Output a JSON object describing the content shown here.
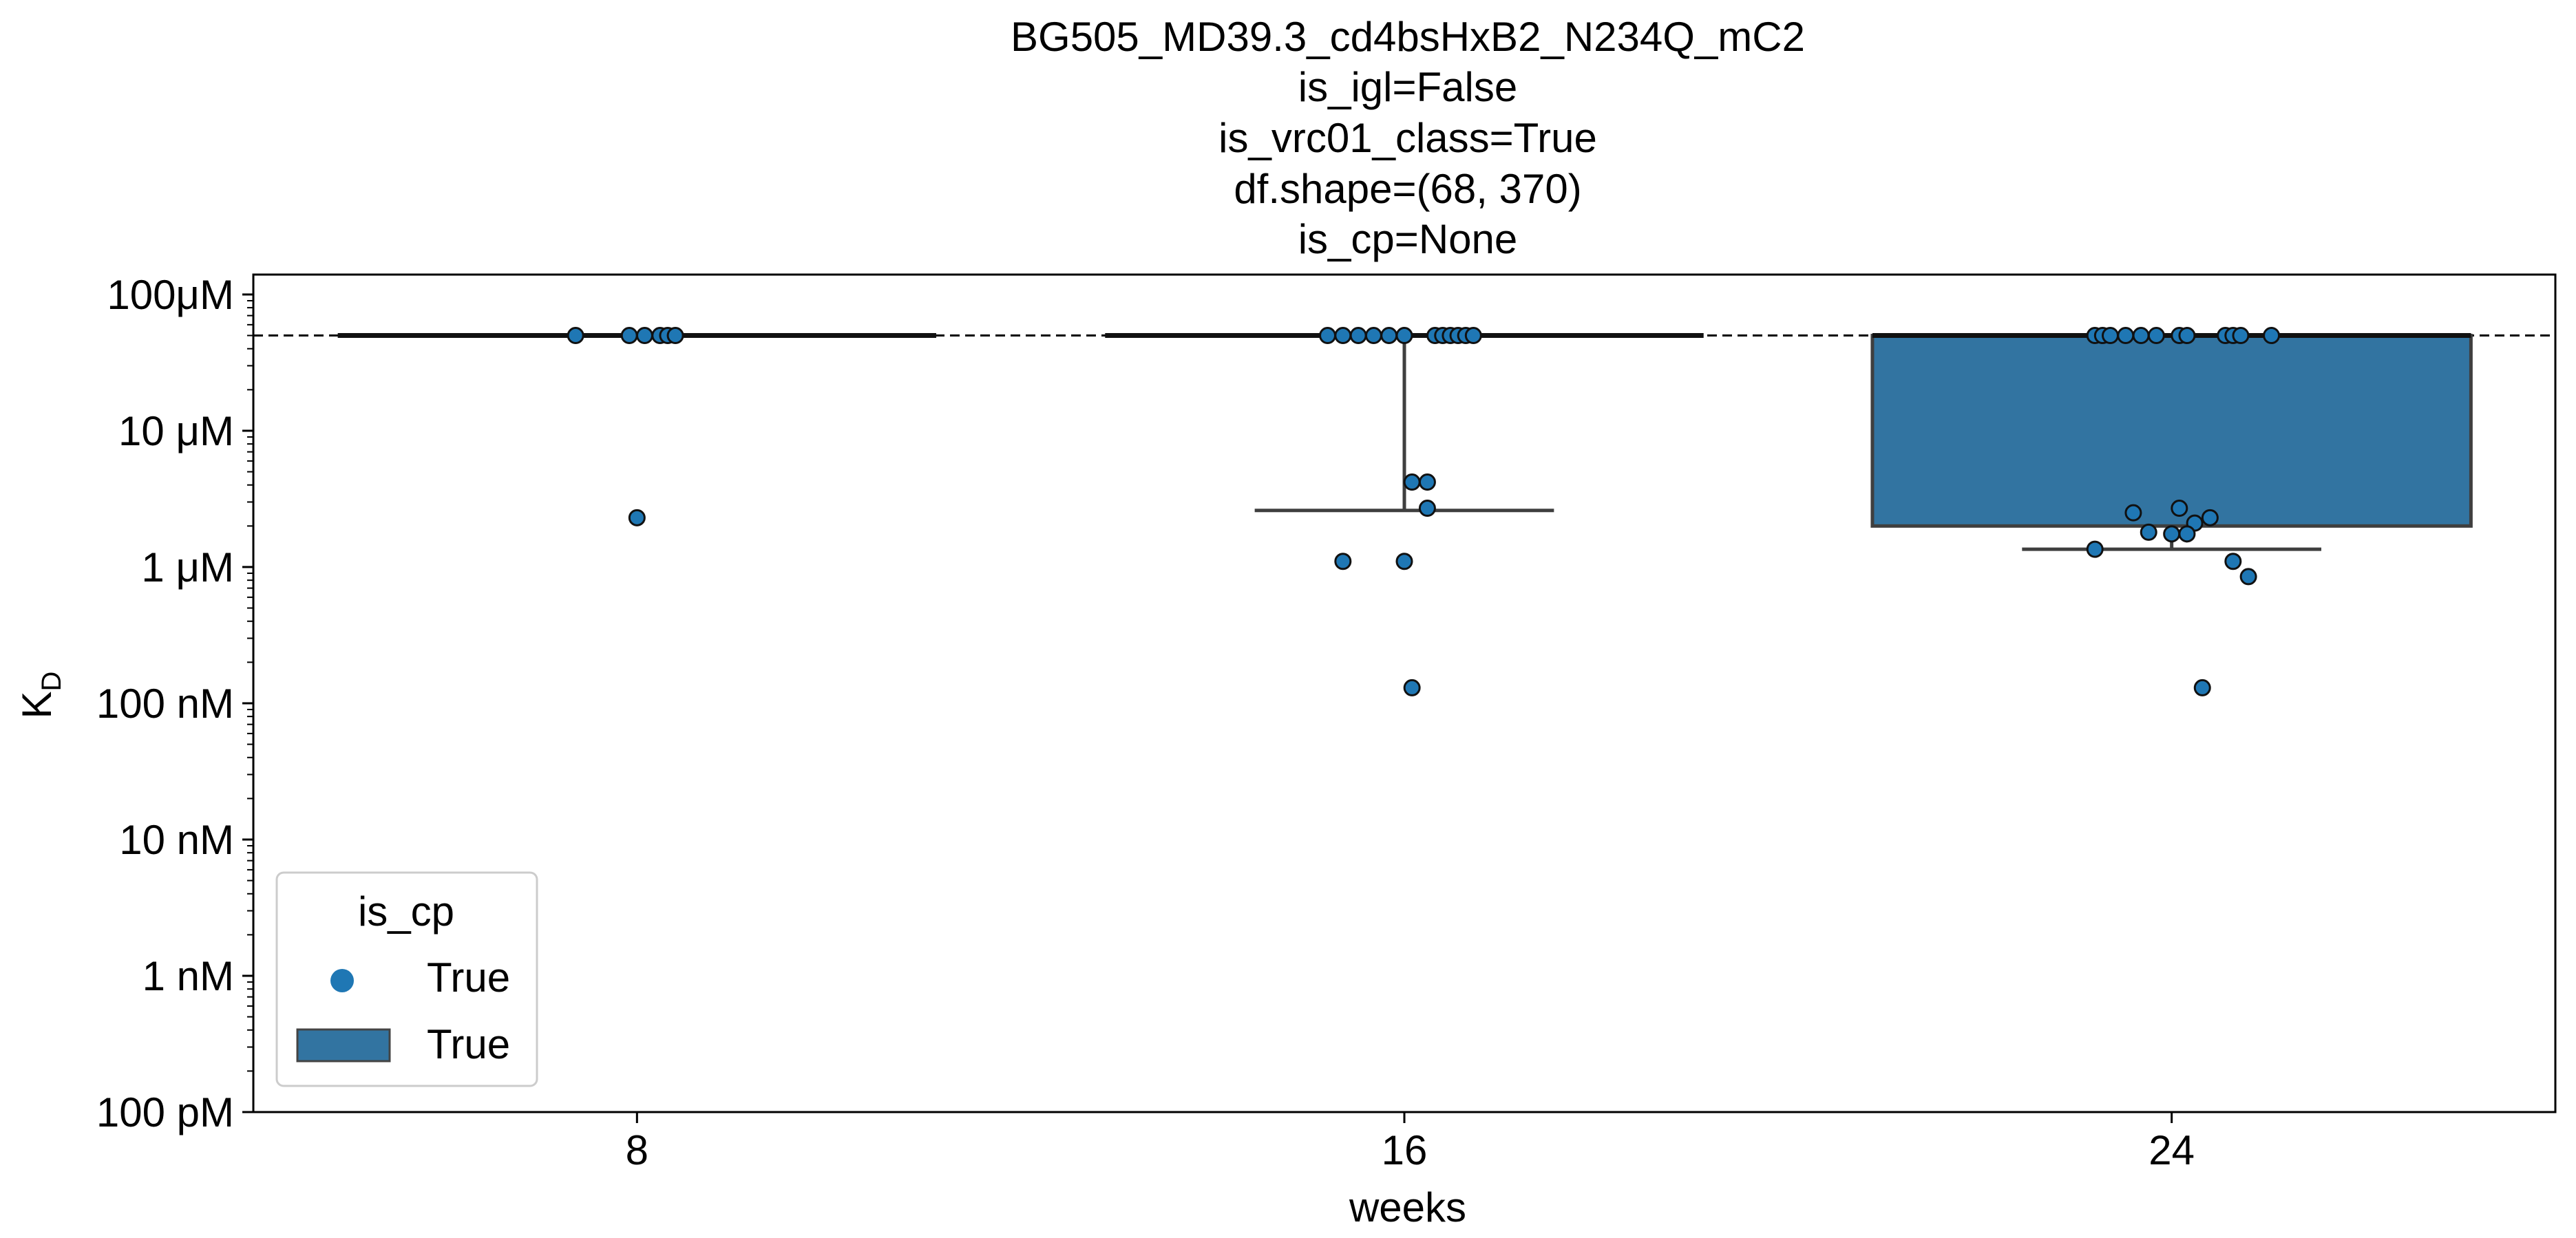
{
  "chart_data": {
    "type": "box",
    "title_lines": [
      "BG505_MD39.3_cd4bsHxB2_N234Q_mC2",
      "is_igl=False",
      "is_vrc01_class=True",
      "df.shape=(68, 370)",
      "is_cp=None"
    ],
    "xlabel": "weeks",
    "ylabel_main": "K",
    "ylabel_sub": "D",
    "y_scale": "log",
    "y_range_molar": [
      1e-10,
      0.00014
    ],
    "y_ticks": [
      {
        "value": 0.0001,
        "label": "100μM"
      },
      {
        "value": 1e-05,
        "label": "10 μM"
      },
      {
        "value": 1e-06,
        "label": "1 μM"
      },
      {
        "value": 1e-07,
        "label": "100 nM"
      },
      {
        "value": 1e-08,
        "label": "10 nM"
      },
      {
        "value": 1e-09,
        "label": "1 nM"
      },
      {
        "value": 1e-10,
        "label": "100 pM"
      }
    ],
    "categories": [
      "8",
      "16",
      "24"
    ],
    "reference_line_molar": 5e-05,
    "color": "#3274a1",
    "point_color": "#1f77b4",
    "boxes": [
      {
        "category": "8",
        "q1": 5e-05,
        "median": 5e-05,
        "q3": 5e-05,
        "whisker_low": 5e-05,
        "whisker_high": 5e-05
      },
      {
        "category": "16",
        "q1": 5e-05,
        "median": 5e-05,
        "q3": 5e-05,
        "whisker_low": 2.6e-06,
        "whisker_high": 5e-05
      },
      {
        "category": "24",
        "q1": 2e-06,
        "median": 5e-05,
        "q3": 5e-05,
        "whisker_low": 1.35e-06,
        "whisker_high": 5e-05
      }
    ],
    "points": [
      {
        "category": "8",
        "values": [
          {
            "dx": -0.08,
            "y": 5e-05
          },
          {
            "dx": -0.01,
            "y": 5e-05
          },
          {
            "dx": 0.01,
            "y": 5e-05
          },
          {
            "dx": 0.03,
            "y": 5e-05
          },
          {
            "dx": 0.04,
            "y": 5e-05
          },
          {
            "dx": 0.05,
            "y": 5e-05
          },
          {
            "dx": 0.0,
            "y": 2.3e-06
          }
        ]
      },
      {
        "category": "16",
        "values": [
          {
            "dx": -0.1,
            "y": 5e-05
          },
          {
            "dx": -0.08,
            "y": 5e-05
          },
          {
            "dx": -0.06,
            "y": 5e-05
          },
          {
            "dx": -0.04,
            "y": 5e-05
          },
          {
            "dx": -0.02,
            "y": 5e-05
          },
          {
            "dx": 0.0,
            "y": 5e-05
          },
          {
            "dx": 0.04,
            "y": 5e-05
          },
          {
            "dx": 0.05,
            "y": 5e-05
          },
          {
            "dx": 0.06,
            "y": 5e-05
          },
          {
            "dx": 0.07,
            "y": 5e-05
          },
          {
            "dx": 0.08,
            "y": 5e-05
          },
          {
            "dx": 0.09,
            "y": 5e-05
          },
          {
            "dx": 0.01,
            "y": 4.2e-06
          },
          {
            "dx": 0.03,
            "y": 4.2e-06
          },
          {
            "dx": 0.03,
            "y": 2.7e-06
          },
          {
            "dx": -0.08,
            "y": 1.1e-06
          },
          {
            "dx": 0.0,
            "y": 1.1e-06
          },
          {
            "dx": 0.01,
            "y": 1.3e-07
          }
        ]
      },
      {
        "category": "24",
        "values": [
          {
            "dx": -0.1,
            "y": 5e-05
          },
          {
            "dx": -0.09,
            "y": 5e-05
          },
          {
            "dx": -0.08,
            "y": 5e-05
          },
          {
            "dx": -0.06,
            "y": 5e-05
          },
          {
            "dx": -0.04,
            "y": 5e-05
          },
          {
            "dx": -0.02,
            "y": 5e-05
          },
          {
            "dx": 0.01,
            "y": 5e-05
          },
          {
            "dx": 0.02,
            "y": 5e-05
          },
          {
            "dx": 0.07,
            "y": 5e-05
          },
          {
            "dx": 0.08,
            "y": 5e-05
          },
          {
            "dx": 0.09,
            "y": 5e-05
          },
          {
            "dx": 0.13,
            "y": 5e-05
          },
          {
            "dx": -0.05,
            "y": 2.5e-06
          },
          {
            "dx": 0.01,
            "y": 2.7e-06
          },
          {
            "dx": 0.05,
            "y": 2.3e-06
          },
          {
            "dx": 0.03,
            "y": 2.1e-06
          },
          {
            "dx": -0.03,
            "y": 1.8e-06
          },
          {
            "dx": 0.0,
            "y": 1.75e-06
          },
          {
            "dx": 0.02,
            "y": 1.75e-06
          },
          {
            "dx": -0.1,
            "y": 1.35e-06
          },
          {
            "dx": 0.08,
            "y": 1.1e-06
          },
          {
            "dx": 0.1,
            "y": 8.5e-07
          },
          {
            "dx": 0.04,
            "y": 1.3e-07
          }
        ]
      }
    ],
    "legend": {
      "title": "is_cp",
      "placement": "lower-left",
      "entries": [
        {
          "marker": "point",
          "label": "True"
        },
        {
          "marker": "box",
          "label": "True"
        }
      ]
    }
  }
}
